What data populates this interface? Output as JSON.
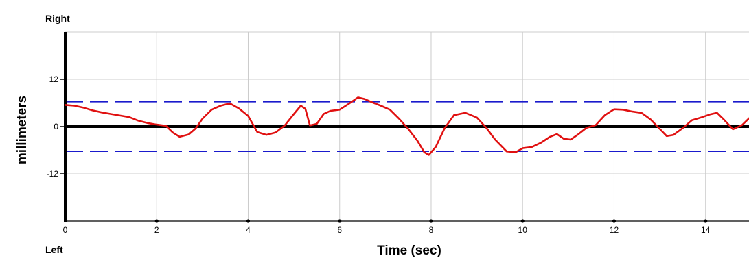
{
  "chart_data": {
    "type": "line",
    "title": "",
    "top_label": "Right",
    "bottom_label": "Left",
    "xlabel": "Time (sec)",
    "ylabel": "millimeters",
    "xlim": [
      0,
      14.95
    ],
    "ylim": [
      -24,
      24
    ],
    "x_ticks": [
      0,
      2,
      4,
      6,
      8,
      10,
      12,
      14
    ],
    "y_ticks": [
      12,
      0,
      -12
    ],
    "grid": true,
    "reference_lines": [
      6.3,
      -6.3
    ],
    "colors": {
      "series": "#e01010",
      "reference": "#1a1acc",
      "zero_line": "#000000",
      "grid": "#cccccc"
    },
    "series": [
      {
        "x": [
          0,
          0.2,
          0.4,
          0.6,
          0.8,
          1.0,
          1.2,
          1.4,
          1.6,
          1.8,
          2.0,
          2.2,
          2.35,
          2.5,
          2.7,
          2.85,
          3.0,
          3.2,
          3.4,
          3.6,
          3.8,
          4.0,
          4.2,
          4.4,
          4.6,
          4.8,
          5.0,
          5.15,
          5.25,
          5.35,
          5.5,
          5.65,
          5.8,
          6.0,
          6.2,
          6.4,
          6.55,
          6.7,
          6.9,
          7.1,
          7.3,
          7.5,
          7.7,
          7.85,
          7.95,
          8.1,
          8.3,
          8.5,
          8.75,
          9.0,
          9.2,
          9.4,
          9.65,
          9.85,
          10.0,
          10.2,
          10.4,
          10.6,
          10.75,
          10.9,
          11.05,
          11.2,
          11.4,
          11.6,
          11.8,
          12.0,
          12.2,
          12.4,
          12.6,
          12.8,
          13.0,
          13.15,
          13.3,
          13.5,
          13.7,
          13.9,
          14.1,
          14.25,
          14.4,
          14.6,
          14.8,
          14.95
        ],
        "y": [
          5.5,
          5.3,
          4.8,
          4.1,
          3.6,
          3.2,
          2.8,
          2.4,
          1.5,
          0.9,
          0.5,
          0.2,
          -1.5,
          -2.6,
          -2.0,
          -0.5,
          2.0,
          4.3,
          5.3,
          5.9,
          4.6,
          2.7,
          -1.4,
          -2.1,
          -1.5,
          0.3,
          3.2,
          5.3,
          4.5,
          0.3,
          0.7,
          3.2,
          4.0,
          4.3,
          5.8,
          7.4,
          7.0,
          6.2,
          5.3,
          4.3,
          2.0,
          -0.6,
          -3.6,
          -6.5,
          -7.2,
          -5.2,
          -0.3,
          2.9,
          3.5,
          2.3,
          -0.2,
          -3.3,
          -6.3,
          -6.5,
          -5.5,
          -5.2,
          -4.1,
          -2.6,
          -1.9,
          -3.1,
          -3.3,
          -2.1,
          -0.3,
          0.4,
          2.9,
          4.4,
          4.3,
          3.8,
          3.5,
          1.8,
          -0.6,
          -2.4,
          -2.1,
          -0.4,
          1.6,
          2.3,
          3.1,
          3.5,
          1.8,
          -0.7,
          0.4,
          2.1
        ]
      }
    ]
  }
}
